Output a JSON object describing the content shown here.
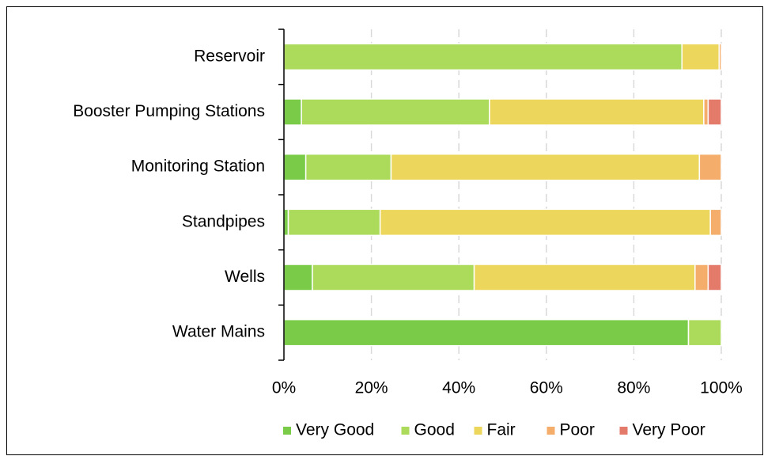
{
  "chart_data": {
    "type": "stacked_bar_horizontal",
    "categories": [
      "Reservoir",
      "Booster Pumping Stations",
      "Monitoring Station",
      "Standpipes",
      "Wells",
      "Water Mains"
    ],
    "series": [
      {
        "name": "Very Good",
        "color": "#7acc48",
        "values": [
          0,
          4,
          5,
          1,
          6.5,
          92.5
        ]
      },
      {
        "name": "Good",
        "color": "#acdb5b",
        "values": [
          91,
          43,
          19.5,
          21,
          37,
          7.5
        ]
      },
      {
        "name": "Fair",
        "color": "#ecd75c",
        "values": [
          8.5,
          49,
          70.5,
          75.5,
          50.5,
          0
        ]
      },
      {
        "name": "Poor",
        "color": "#f4ad6b",
        "values": [
          0.5,
          1,
          5,
          2.5,
          3,
          0
        ]
      },
      {
        "name": "Very Poor",
        "color": "#e47a6a",
        "values": [
          0,
          3,
          0,
          0,
          3,
          0
        ]
      }
    ],
    "xlim": [
      0,
      100
    ],
    "xticks": [
      {
        "value": 0,
        "label": "0%"
      },
      {
        "value": 20,
        "label": "20%"
      },
      {
        "value": 40,
        "label": "40%"
      },
      {
        "value": 60,
        "label": "60%"
      },
      {
        "value": 80,
        "label": "80%"
      },
      {
        "value": 100,
        "label": "100%"
      }
    ],
    "grid": true,
    "legend": "bottom"
  }
}
